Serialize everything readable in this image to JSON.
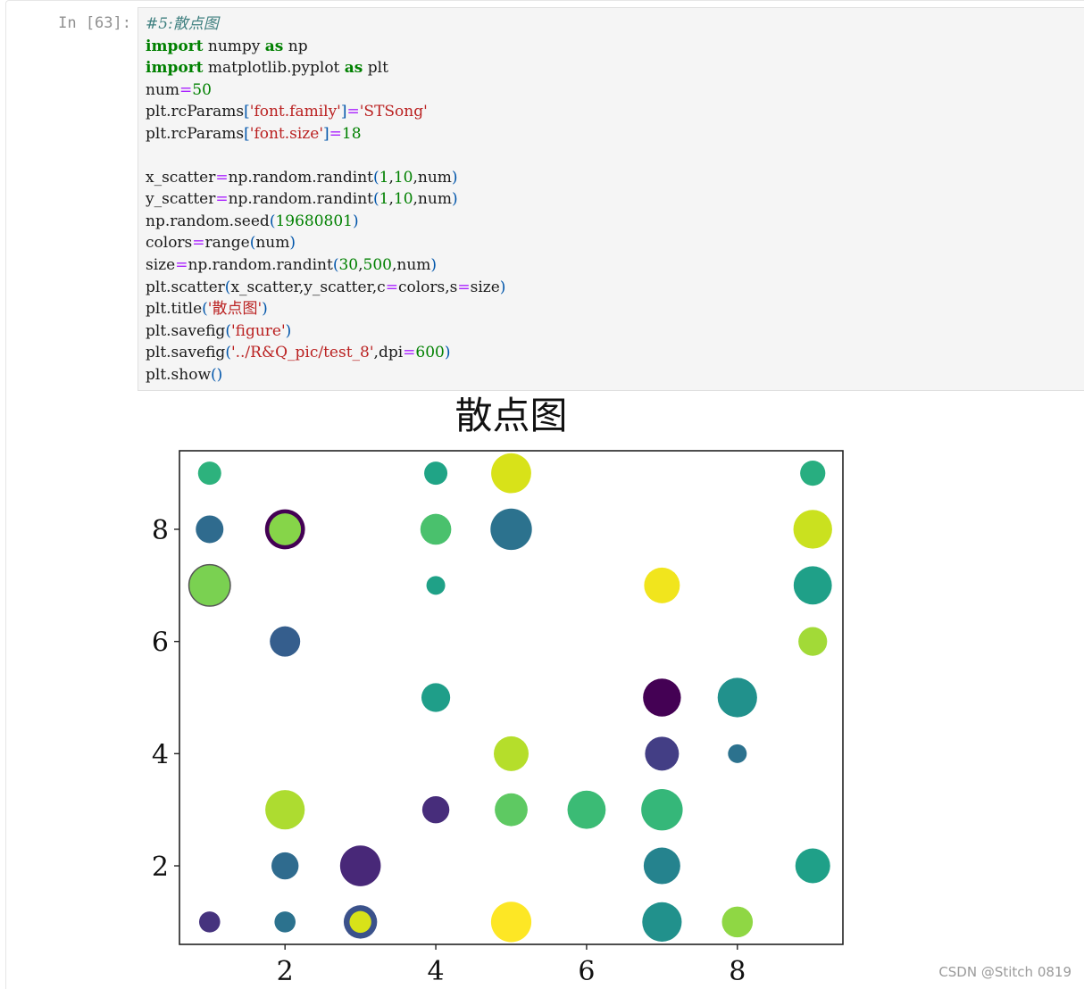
{
  "cell": {
    "prompt": "In [63]:",
    "code_lines": [
      [
        {
          "t": "#5:散点图",
          "c": "cm"
        }
      ],
      [
        {
          "t": "import",
          "c": "kw"
        },
        {
          "t": " numpy "
        },
        {
          "t": "as",
          "c": "kw"
        },
        {
          "t": " np"
        }
      ],
      [
        {
          "t": "import",
          "c": "kw"
        },
        {
          "t": " matplotlib.pyplot "
        },
        {
          "t": "as",
          "c": "kw"
        },
        {
          "t": " plt"
        }
      ],
      [
        {
          "t": "num"
        },
        {
          "t": "=",
          "c": "op"
        },
        {
          "t": "50",
          "c": "nm"
        }
      ],
      [
        {
          "t": "plt.rcParams"
        },
        {
          "t": "[",
          "c": "pn"
        },
        {
          "t": "'font.family'",
          "c": "st"
        },
        {
          "t": "]",
          "c": "pn"
        },
        {
          "t": "=",
          "c": "op"
        },
        {
          "t": "'STSong'",
          "c": "st"
        }
      ],
      [
        {
          "t": "plt.rcParams"
        },
        {
          "t": "[",
          "c": "pn"
        },
        {
          "t": "'font.size'",
          "c": "st"
        },
        {
          "t": "]",
          "c": "pn"
        },
        {
          "t": "=",
          "c": "op"
        },
        {
          "t": "18",
          "c": "nm"
        }
      ],
      [],
      [
        {
          "t": "x_scatter"
        },
        {
          "t": "=",
          "c": "op"
        },
        {
          "t": "np.random.randint"
        },
        {
          "t": "(",
          "c": "pn"
        },
        {
          "t": "1",
          "c": "nm"
        },
        {
          "t": ","
        },
        {
          "t": "10",
          "c": "nm"
        },
        {
          "t": ",num"
        },
        {
          "t": ")",
          "c": "pn"
        }
      ],
      [
        {
          "t": "y_scatter"
        },
        {
          "t": "=",
          "c": "op"
        },
        {
          "t": "np.random.randint"
        },
        {
          "t": "(",
          "c": "pn"
        },
        {
          "t": "1",
          "c": "nm"
        },
        {
          "t": ","
        },
        {
          "t": "10",
          "c": "nm"
        },
        {
          "t": ",num"
        },
        {
          "t": ")",
          "c": "pn"
        }
      ],
      [
        {
          "t": "np.random.seed"
        },
        {
          "t": "(",
          "c": "pn"
        },
        {
          "t": "19680801",
          "c": "nm"
        },
        {
          "t": ")",
          "c": "pn"
        }
      ],
      [
        {
          "t": "colors"
        },
        {
          "t": "=",
          "c": "op"
        },
        {
          "t": "range"
        },
        {
          "t": "(",
          "c": "pn"
        },
        {
          "t": "num"
        },
        {
          "t": ")",
          "c": "pn"
        }
      ],
      [
        {
          "t": "size"
        },
        {
          "t": "=",
          "c": "op"
        },
        {
          "t": "np.random.randint"
        },
        {
          "t": "(",
          "c": "pn"
        },
        {
          "t": "30",
          "c": "nm"
        },
        {
          "t": ","
        },
        {
          "t": "500",
          "c": "nm"
        },
        {
          "t": ",num"
        },
        {
          "t": ")",
          "c": "pn"
        }
      ],
      [
        {
          "t": "plt.scatter"
        },
        {
          "t": "(",
          "c": "pn"
        },
        {
          "t": "x_scatter,y_scatter,c"
        },
        {
          "t": "=",
          "c": "op"
        },
        {
          "t": "colors,s"
        },
        {
          "t": "=",
          "c": "op"
        },
        {
          "t": "size"
        },
        {
          "t": ")",
          "c": "pn"
        }
      ],
      [
        {
          "t": "plt.title"
        },
        {
          "t": "(",
          "c": "pn"
        },
        {
          "t": "'散点图'",
          "c": "st"
        },
        {
          "t": ")",
          "c": "pn"
        }
      ],
      [
        {
          "t": "plt.savefig"
        },
        {
          "t": "(",
          "c": "pn"
        },
        {
          "t": "'figure'",
          "c": "st"
        },
        {
          "t": ")",
          "c": "pn"
        }
      ],
      [
        {
          "t": "plt.savefig"
        },
        {
          "t": "(",
          "c": "pn"
        },
        {
          "t": "'../R&Q_pic/test_8'",
          "c": "st"
        },
        {
          "t": ",dpi"
        },
        {
          "t": "=",
          "c": "op"
        },
        {
          "t": "600",
          "c": "nm"
        },
        {
          "t": ")",
          "c": "pn"
        }
      ],
      [
        {
          "t": "plt.show"
        },
        {
          "t": "()",
          "c": "pn"
        }
      ]
    ]
  },
  "colors": {
    "comment": "#408080",
    "keyword": "#008000",
    "number": "#008000",
    "string": "#ba2121",
    "operator": "#aa22ff",
    "paren": "#0055aa",
    "code_bg": "#f5f5f5"
  },
  "chart_data": {
    "type": "scatter",
    "title": "散点图",
    "xlim": [
      0.6,
      9.4
    ],
    "ylim": [
      0.6,
      9.4
    ],
    "xticks": [
      2,
      4,
      6,
      8
    ],
    "yticks": [
      2,
      4,
      6,
      8
    ],
    "grid": false,
    "colormap": "viridis",
    "points": [
      {
        "x": 1,
        "y": 9,
        "size": 170,
        "color": "#2db27d"
      },
      {
        "x": 4,
        "y": 9,
        "size": 170,
        "color": "#20a486"
      },
      {
        "x": 5,
        "y": 9,
        "size": 500,
        "color": "#d8e219"
      },
      {
        "x": 9,
        "y": 9,
        "size": 200,
        "color": "#28ae80"
      },
      {
        "x": 1,
        "y": 8,
        "size": 240,
        "color": "#2f6b8e"
      },
      {
        "x": 2,
        "y": 8,
        "size": 500,
        "color": "#440154",
        "border": true
      },
      {
        "x": 2,
        "y": 8,
        "size": 320,
        "color": "#86d549"
      },
      {
        "x": 4,
        "y": 8,
        "size": 300,
        "color": "#4ac16d"
      },
      {
        "x": 5,
        "y": 8,
        "size": 540,
        "color": "#2c728e"
      },
      {
        "x": 9,
        "y": 8,
        "size": 470,
        "color": "#cae11f"
      },
      {
        "x": 1,
        "y": 7,
        "size": 540,
        "color": "#7ad151",
        "edge": "#555555"
      },
      {
        "x": 4,
        "y": 7,
        "size": 110,
        "color": "#1fa187"
      },
      {
        "x": 7,
        "y": 7,
        "size": 400,
        "color": "#f1e51d"
      },
      {
        "x": 9,
        "y": 7,
        "size": 460,
        "color": "#1fa088"
      },
      {
        "x": 2,
        "y": 6,
        "size": 290,
        "color": "#355e8d"
      },
      {
        "x": 9,
        "y": 6,
        "size": 260,
        "color": "#a2da37"
      },
      {
        "x": 4,
        "y": 5,
        "size": 260,
        "color": "#1f9e89"
      },
      {
        "x": 7,
        "y": 5,
        "size": 450,
        "color": "#440154"
      },
      {
        "x": 8,
        "y": 5,
        "size": 490,
        "color": "#21918c"
      },
      {
        "x": 5,
        "y": 4,
        "size": 380,
        "color": "#b5de2b"
      },
      {
        "x": 7,
        "y": 4,
        "size": 360,
        "color": "#433e85"
      },
      {
        "x": 8,
        "y": 4,
        "size": 110,
        "color": "#2c728e"
      },
      {
        "x": 2,
        "y": 3,
        "size": 490,
        "color": "#addc30"
      },
      {
        "x": 4,
        "y": 3,
        "size": 230,
        "color": "#472d7b"
      },
      {
        "x": 5,
        "y": 3,
        "size": 340,
        "color": "#5ec962"
      },
      {
        "x": 6,
        "y": 3,
        "size": 460,
        "color": "#3bbb75"
      },
      {
        "x": 7,
        "y": 3,
        "size": 540,
        "color": "#35b779"
      },
      {
        "x": 2,
        "y": 2,
        "size": 230,
        "color": "#2f6b8e"
      },
      {
        "x": 3,
        "y": 2,
        "size": 520,
        "color": "#482878"
      },
      {
        "x": 7,
        "y": 2,
        "size": 420,
        "color": "#25838e"
      },
      {
        "x": 9,
        "y": 2,
        "size": 380,
        "color": "#1fa088"
      },
      {
        "x": 1,
        "y": 1,
        "size": 140,
        "color": "#46337e"
      },
      {
        "x": 2,
        "y": 1,
        "size": 140,
        "color": "#2c728e"
      },
      {
        "x": 3,
        "y": 1,
        "size": 350,
        "color": "#3b528b"
      },
      {
        "x": 3,
        "y": 1,
        "size": 150,
        "color": "#d8e219"
      },
      {
        "x": 5,
        "y": 1,
        "size": 510,
        "color": "#fde725"
      },
      {
        "x": 7,
        "y": 1,
        "size": 490,
        "color": "#21918c"
      },
      {
        "x": 8,
        "y": 1,
        "size": 300,
        "color": "#8fd744"
      }
    ]
  },
  "watermark": "CSDN @Stitch 0819"
}
